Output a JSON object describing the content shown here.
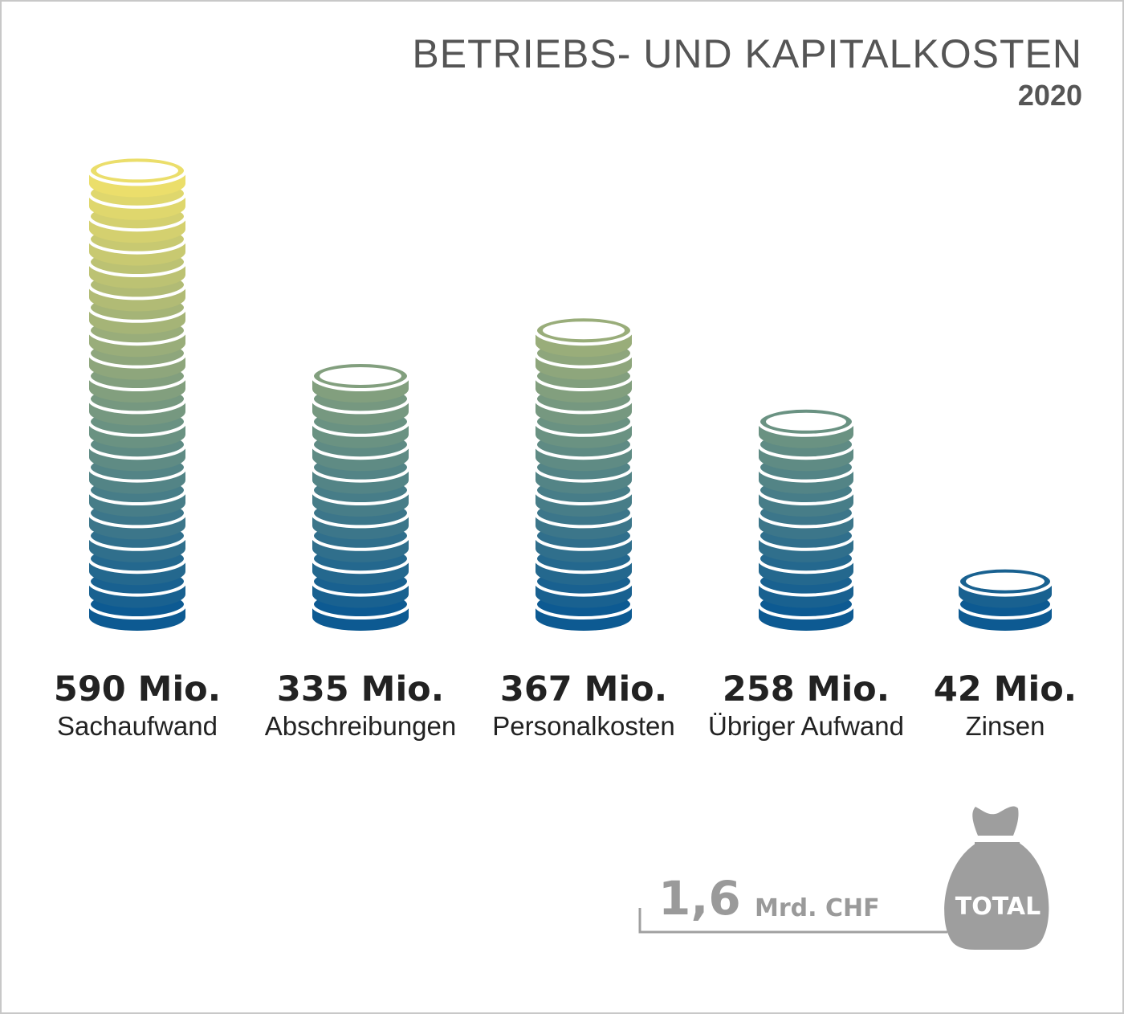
{
  "header": {
    "title": "BETRIEBS- UND KAPITALKOSTEN",
    "subtitle": "2020"
  },
  "chart_data": {
    "type": "bar",
    "title": "BETRIEBS- UND KAPITALKOSTEN",
    "subtitle": "2020",
    "categories": [
      "Sachaufwand",
      "Abschreibungen",
      "Personalkosten",
      "Übriger Aufwand",
      "Zinsen"
    ],
    "values": [
      590,
      335,
      367,
      258,
      42
    ],
    "value_labels": [
      "590 Mio.",
      "335 Mio.",
      "367 Mio.",
      "258 Mio.",
      "42 Mio."
    ],
    "unit": "Mio.",
    "coin_counts": [
      20,
      11,
      13,
      9,
      2
    ],
    "gradient_colors": [
      "#0d5a92",
      "#f2e26a"
    ],
    "grid": false
  },
  "total": {
    "number": "1,6",
    "unit": "Mrd. CHF",
    "bag_label": "TOTAL",
    "bag_color": "#9e9e9e"
  }
}
